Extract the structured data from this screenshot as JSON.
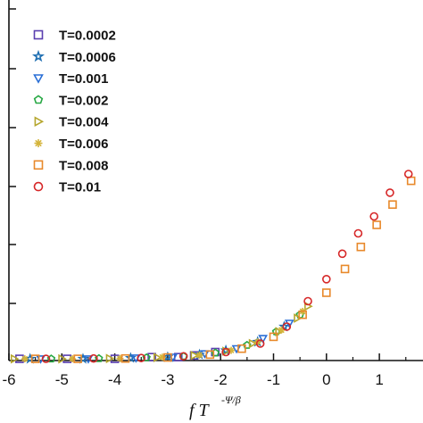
{
  "chart_data": {
    "type": "scatter",
    "xlabel": {
      "base": "f T",
      "exponent": "-Ψ/β"
    },
    "xlim": [
      -6,
      2
    ],
    "x_ticks": [
      "-6",
      "-5",
      "-4",
      "-3",
      "-2",
      "-1",
      "0",
      "1"
    ],
    "y_ticks_unlabeled": true,
    "legend_position": "top-left",
    "series": [
      {
        "name": "T=0.0002",
        "marker": "square",
        "color": "#5a3fb0",
        "points": [
          [
            -5.8,
            0.01
          ],
          [
            -4.9,
            0.01
          ],
          [
            -4.0,
            0.01
          ],
          [
            -3.3,
            0.02
          ],
          [
            -2.8,
            0.02
          ],
          [
            -2.5,
            0.03
          ],
          [
            -2.1,
            0.05
          ]
        ]
      },
      {
        "name": "T=0.0006",
        "marker": "star",
        "color": "#1f6fb2",
        "points": [
          [
            -5.6,
            0.01
          ],
          [
            -4.6,
            0.01
          ],
          [
            -3.7,
            0.015
          ],
          [
            -3.0,
            0.02
          ],
          [
            -2.4,
            0.035
          ],
          [
            -1.9,
            0.06
          ],
          [
            -1.3,
            0.11
          ],
          [
            -0.8,
            0.2
          ]
        ]
      },
      {
        "name": "T=0.001",
        "marker": "triangle-down",
        "color": "#2a6fd6",
        "points": [
          [
            -5.4,
            0.01
          ],
          [
            -4.5,
            0.01
          ],
          [
            -3.6,
            0.015
          ],
          [
            -2.9,
            0.02
          ],
          [
            -2.3,
            0.04
          ],
          [
            -1.7,
            0.07
          ],
          [
            -1.2,
            0.13
          ],
          [
            -0.7,
            0.22
          ]
        ]
      },
      {
        "name": "T=0.002",
        "marker": "pentagon",
        "color": "#27a844",
        "points": [
          [
            -5.2,
            0.01
          ],
          [
            -4.3,
            0.012
          ],
          [
            -3.4,
            0.017
          ],
          [
            -2.7,
            0.025
          ],
          [
            -2.1,
            0.045
          ],
          [
            -1.5,
            0.09
          ],
          [
            -0.95,
            0.17
          ],
          [
            -0.5,
            0.27
          ]
        ]
      },
      {
        "name": "T=0.004",
        "marker": "triangle-right",
        "color": "#b5a62d",
        "points": [
          [
            -5.9,
            0.01
          ],
          [
            -5.0,
            0.01
          ],
          [
            -4.1,
            0.012
          ],
          [
            -3.2,
            0.018
          ],
          [
            -2.5,
            0.03
          ],
          [
            -1.9,
            0.055
          ],
          [
            -1.4,
            0.1
          ],
          [
            -0.9,
            0.17
          ],
          [
            -0.55,
            0.25
          ],
          [
            -0.35,
            0.32
          ]
        ]
      },
      {
        "name": "T=0.006",
        "marker": "asterisk",
        "color": "#d4b43a",
        "points": [
          [
            -5.7,
            0.01
          ],
          [
            -4.8,
            0.01
          ],
          [
            -3.9,
            0.012
          ],
          [
            -3.1,
            0.02
          ],
          [
            -2.4,
            0.032
          ],
          [
            -1.8,
            0.06
          ],
          [
            -1.3,
            0.11
          ],
          [
            -0.85,
            0.18
          ],
          [
            -0.45,
            0.29
          ]
        ]
      },
      {
        "name": "T=0.008",
        "marker": "square",
        "color": "#e8892b",
        "points": [
          [
            -5.5,
            0.01
          ],
          [
            -4.7,
            0.01
          ],
          [
            -3.8,
            0.012
          ],
          [
            -3.0,
            0.018
          ],
          [
            -2.2,
            0.035
          ],
          [
            -1.6,
            0.07
          ],
          [
            -1.0,
            0.14
          ],
          [
            -0.45,
            0.27
          ],
          [
            0.0,
            0.4
          ],
          [
            0.35,
            0.54
          ],
          [
            0.65,
            0.67
          ],
          [
            0.95,
            0.8
          ],
          [
            1.25,
            0.92
          ],
          [
            1.6,
            1.06
          ]
        ]
      },
      {
        "name": "T=0.01",
        "marker": "circle",
        "color": "#d62728",
        "points": [
          [
            -5.3,
            0.01
          ],
          [
            -4.4,
            0.012
          ],
          [
            -3.5,
            0.015
          ],
          [
            -2.7,
            0.025
          ],
          [
            -1.9,
            0.05
          ],
          [
            -1.25,
            0.1
          ],
          [
            -0.75,
            0.2
          ],
          [
            -0.35,
            0.35
          ],
          [
            0.0,
            0.48
          ],
          [
            0.3,
            0.63
          ],
          [
            0.6,
            0.75
          ],
          [
            0.9,
            0.85
          ],
          [
            1.2,
            0.99
          ],
          [
            1.55,
            1.1
          ]
        ]
      }
    ]
  }
}
